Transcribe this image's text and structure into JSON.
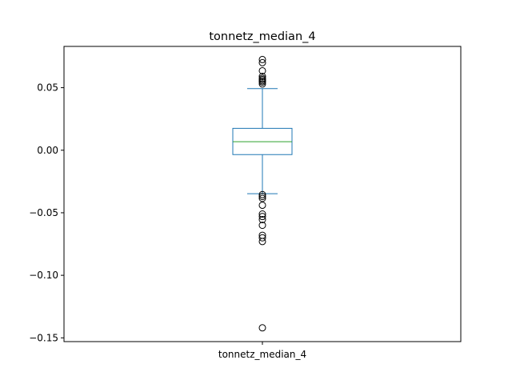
{
  "chart_data": {
    "type": "box",
    "title": "tonnetz_median_4",
    "xlabel": "",
    "ylabel": "",
    "categories": [
      "tonnetz_median_4"
    ],
    "ylim": [
      -0.153,
      0.083
    ],
    "yticks": [
      0.05,
      0.0,
      -0.05,
      -0.1,
      -0.15
    ],
    "ytick_labels": [
      "0.05",
      "0.00",
      "−0.05",
      "−0.10",
      "−0.15"
    ],
    "grid": false,
    "box": {
      "q1": -0.0035,
      "median": 0.0068,
      "q3": 0.0175,
      "whisker_low": -0.0348,
      "whisker_high": 0.0493
    },
    "outliers": [
      0.0725,
      0.07,
      0.0635,
      0.059,
      0.0575,
      0.0565,
      0.0555,
      0.0545,
      0.053,
      -0.0355,
      -0.037,
      -0.0385,
      -0.044,
      -0.051,
      -0.053,
      -0.0555,
      -0.06,
      -0.068,
      -0.07,
      -0.073,
      -0.142
    ],
    "colors": {
      "box": "#1f77b4",
      "median": "#2ca02c",
      "outlier_edge": "#000000",
      "axes": "#000000"
    }
  }
}
